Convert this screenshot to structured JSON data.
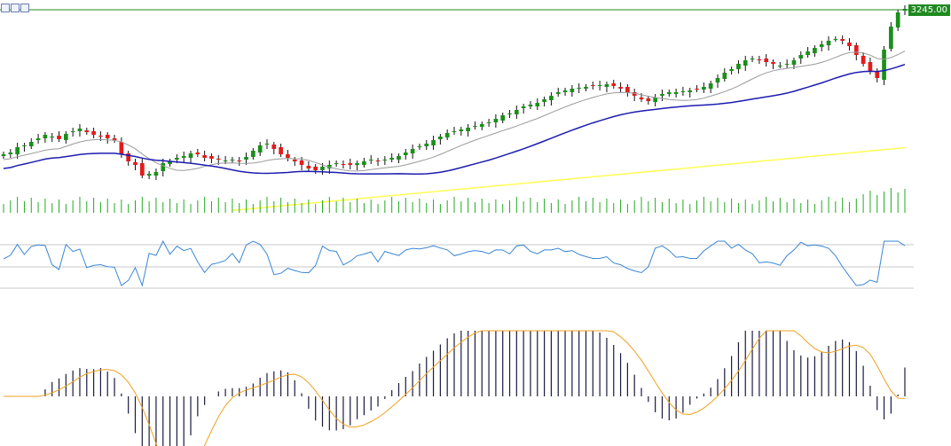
{
  "toolbar": {
    "icons": [
      "bars-chart-icon",
      "candles-chart-icon",
      "line-chart-icon"
    ]
  },
  "current_price": "3245.00",
  "colors": {
    "bull": "#1a8f1a",
    "bear": "#e41b1b",
    "wick": "#111111",
    "sma_short": "#9a9a9a",
    "sma_mid": "#1c1cb0",
    "sma_long": "#ffff55",
    "volume": "#22aa22",
    "rsi": "#3a86d6",
    "rsi_levels": "#c8c8c8",
    "macd_hist": "#1a1a40",
    "macd_signal": "#f0a020",
    "price_line": "#1f8a1f"
  },
  "chart_data": {
    "type": "candlestick",
    "ohlc": [],
    "indicators": [
      "sma-short",
      "sma-mid",
      "sma-long",
      "volume",
      "rsi",
      "macd"
    ]
  }
}
